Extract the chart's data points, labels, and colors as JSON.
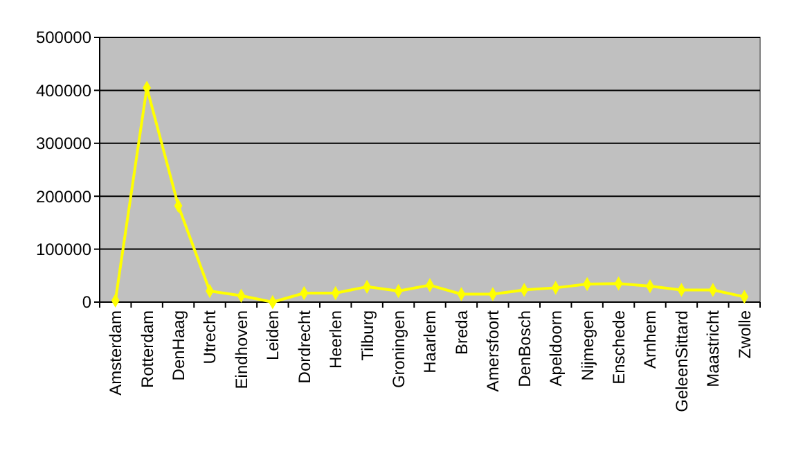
{
  "chart_data": {
    "type": "line",
    "categories": [
      "Amsterdam",
      "Rotterdam",
      "DenHaag",
      "Utrecht",
      "Eindhoven",
      "Leiden",
      "Dordrecht",
      "Heerlen",
      "Tilburg",
      "Groningen",
      "Haarlem",
      "Breda",
      "Amersfoort",
      "DenBosch",
      "Apeldoorn",
      "Nijmegen",
      "Enschede",
      "Arnhem",
      "GeleenSittard",
      "Maastricht",
      "Zwolle"
    ],
    "series": [
      {
        "color": "#ffff00",
        "values": [
          3000,
          405000,
          182000,
          21000,
          12000,
          0,
          17000,
          17000,
          29000,
          21000,
          32000,
          15000,
          15000,
          23000,
          27000,
          34000,
          35000,
          30000,
          23000,
          23000,
          10000
        ]
      }
    ],
    "ylim": [
      0,
      500000
    ],
    "yticks": [
      0,
      100000,
      200000,
      300000,
      400000,
      500000
    ],
    "grid": "y",
    "marker": "diamond",
    "line_style": "solid"
  }
}
